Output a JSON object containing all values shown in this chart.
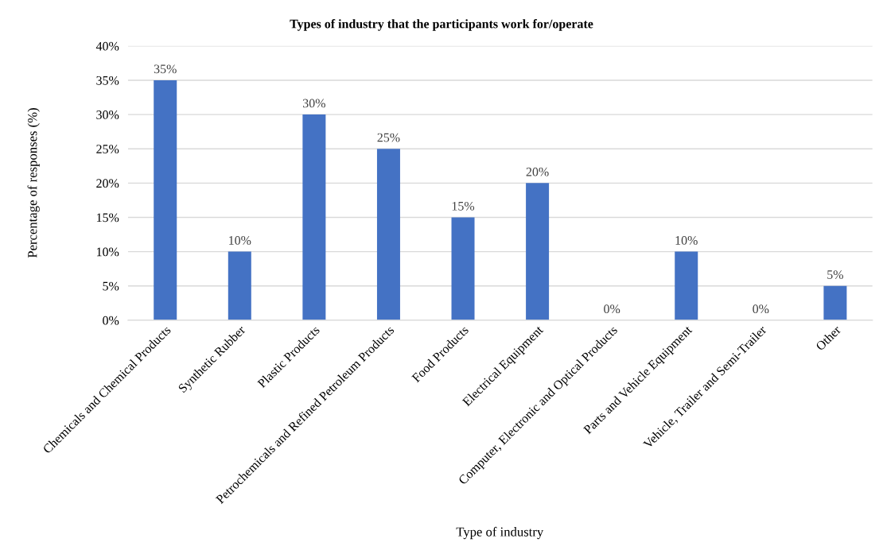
{
  "chart_data": {
    "type": "bar",
    "title": "Types of industry that the participants work for/operate",
    "xlabel": "Type of industry",
    "ylabel": "Percentage of responses (%)",
    "categories": [
      "Chemicals and Chemical Products",
      "Synthetic Rubber",
      "Plastic Products",
      "Petrochemicals and Refined Petroleum Products",
      "Food Products",
      "Electrical Equipment",
      "Computer, Electronic and Optical Products",
      "Parts and Vehicle Equipment",
      "Vehicle, Trailer and Semi-Trailer",
      "Other"
    ],
    "values": [
      35,
      10,
      30,
      25,
      15,
      20,
      0,
      10,
      0,
      5
    ],
    "value_labels": [
      "35%",
      "10%",
      "30%",
      "25%",
      "15%",
      "20%",
      "0%",
      "10%",
      "0%",
      "5%"
    ],
    "color": "#4472c4",
    "ylim": [
      0,
      40
    ],
    "yticks": [
      {
        "value": 0,
        "label": "0%"
      },
      {
        "value": 5,
        "label": "5%"
      },
      {
        "value": 10,
        "label": "10%"
      },
      {
        "value": 15,
        "label": "15%"
      },
      {
        "value": 20,
        "label": "20%"
      },
      {
        "value": 25,
        "label": "25%"
      },
      {
        "value": 30,
        "label": "30%"
      },
      {
        "value": 35,
        "label": "35%"
      },
      {
        "value": 40,
        "label": "40%"
      }
    ],
    "grid": "y"
  }
}
